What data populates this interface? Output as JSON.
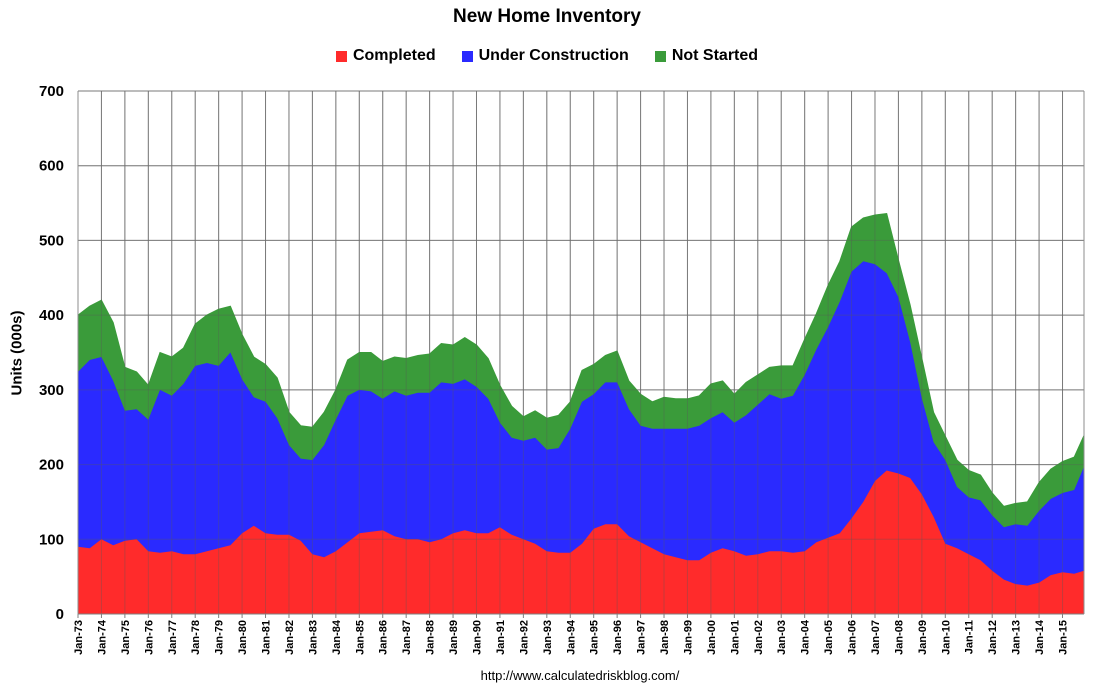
{
  "chart_data": {
    "type": "area",
    "stacked": true,
    "title": "New Home Inventory",
    "xlabel": "",
    "ylabel": "Units (000s)",
    "ylim": [
      0,
      700
    ],
    "yticks": [
      0,
      100,
      200,
      300,
      400,
      500,
      600,
      700
    ],
    "grid": true,
    "legend_position": "top",
    "x_start": "Jan-73",
    "x_end": "Dec-15",
    "x_ticks": [
      "Jan-73",
      "Jan-74",
      "Jan-75",
      "Jan-76",
      "Jan-77",
      "Jan-78",
      "Jan-79",
      "Jan-80",
      "Jan-81",
      "Jan-82",
      "Jan-83",
      "Jan-84",
      "Jan-85",
      "Jan-86",
      "Jan-87",
      "Jan-88",
      "Jan-89",
      "Jan-90",
      "Jan-91",
      "Jan-92",
      "Jan-93",
      "Jan-94",
      "Jan-95",
      "Jan-96",
      "Jan-97",
      "Jan-98",
      "Jan-99",
      "Jan-00",
      "Jan-01",
      "Jan-02",
      "Jan-03",
      "Jan-04",
      "Jan-05",
      "Jan-06",
      "Jan-07",
      "Jan-08",
      "Jan-09",
      "Jan-10",
      "Jan-11",
      "Jan-12",
      "Jan-13",
      "Jan-14",
      "Jan-15"
    ],
    "x": [
      "Jan-73",
      "Jul-73",
      "Jan-74",
      "Jul-74",
      "Jan-75",
      "Jul-75",
      "Jan-76",
      "Jul-76",
      "Jan-77",
      "Jul-77",
      "Jan-78",
      "Jul-78",
      "Jan-79",
      "Jul-79",
      "Jan-80",
      "Jul-80",
      "Jan-81",
      "Jul-81",
      "Jan-82",
      "Jul-82",
      "Jan-83",
      "Jul-83",
      "Jan-84",
      "Jul-84",
      "Jan-85",
      "Jul-85",
      "Jan-86",
      "Jul-86",
      "Jan-87",
      "Jul-87",
      "Jan-88",
      "Jul-88",
      "Jan-89",
      "Jul-89",
      "Jan-90",
      "Jul-90",
      "Jan-91",
      "Jul-91",
      "Jan-92",
      "Jul-92",
      "Jan-93",
      "Jul-93",
      "Jan-94",
      "Jul-94",
      "Jan-95",
      "Jul-95",
      "Jan-96",
      "Jul-96",
      "Jan-97",
      "Jul-97",
      "Jan-98",
      "Jul-98",
      "Jan-99",
      "Jul-99",
      "Jan-00",
      "Jul-00",
      "Jan-01",
      "Jul-01",
      "Jan-02",
      "Jul-02",
      "Jan-03",
      "Jul-03",
      "Jan-04",
      "Jul-04",
      "Jan-05",
      "Jul-05",
      "Jan-06",
      "Jul-06",
      "Jan-07",
      "Jul-07",
      "Jan-08",
      "Jul-08",
      "Jan-09",
      "Jul-09",
      "Jan-10",
      "Jul-10",
      "Jan-11",
      "Jul-11",
      "Jan-12",
      "Jul-12",
      "Jan-13",
      "Jul-13",
      "Jan-14",
      "Jul-14",
      "Jan-15",
      "Jul-15",
      "Dec-15"
    ],
    "series": [
      {
        "name": "Completed",
        "color": "#ff2b2b",
        "values": [
          90,
          88,
          100,
          92,
          98,
          100,
          84,
          82,
          84,
          80,
          80,
          84,
          88,
          92,
          108,
          118,
          108,
          106,
          106,
          98,
          80,
          76,
          84,
          96,
          108,
          110,
          112,
          104,
          100,
          100,
          96,
          100,
          108,
          112,
          108,
          108,
          116,
          106,
          100,
          94,
          84,
          82,
          82,
          94,
          114,
          120,
          120,
          104,
          96,
          88,
          80,
          76,
          72,
          72,
          82,
          88,
          84,
          78,
          80,
          84,
          84,
          82,
          84,
          96,
          102,
          108,
          128,
          150,
          178,
          192,
          188,
          182,
          160,
          130,
          94,
          88,
          80,
          72,
          58,
          46,
          40,
          38,
          42,
          52,
          56,
          54,
          58
        ]
      },
      {
        "name": "Under Construction",
        "color": "#2a2aff",
        "values": [
          234,
          252,
          244,
          220,
          174,
          174,
          176,
          218,
          208,
          228,
          252,
          252,
          244,
          258,
          206,
          172,
          176,
          156,
          120,
          110,
          126,
          150,
          176,
          196,
          192,
          188,
          176,
          194,
          192,
          196,
          200,
          210,
          200,
          202,
          196,
          180,
          140,
          130,
          132,
          142,
          136,
          140,
          166,
          190,
          180,
          190,
          190,
          170,
          156,
          160,
          168,
          172,
          176,
          180,
          180,
          182,
          172,
          188,
          200,
          210,
          204,
          210,
          236,
          258,
          282,
          310,
          330,
          322,
          290,
          264,
          236,
          182,
          128,
          100,
          112,
          82,
          76,
          80,
          74,
          70,
          80,
          80,
          96,
          102,
          106,
          112,
          139
        ]
      },
      {
        "name": "Not Started",
        "color": "#3a9b3a",
        "values": [
          76,
          72,
          76,
          78,
          58,
          50,
          46,
          50,
          52,
          48,
          56,
          64,
          76,
          62,
          60,
          54,
          50,
          54,
          44,
          44,
          44,
          44,
          40,
          48,
          50,
          52,
          50,
          46,
          50,
          50,
          52,
          52,
          52,
          56,
          56,
          54,
          50,
          42,
          32,
          36,
          42,
          44,
          36,
          42,
          40,
          36,
          42,
          38,
          42,
          36,
          42,
          40,
          40,
          40,
          46,
          42,
          38,
          44,
          40,
          36,
          44,
          40,
          48,
          48,
          56,
          54,
          60,
          58,
          66,
          80,
          50,
          50,
          54,
          40,
          32,
          36,
          36,
          34,
          30,
          28,
          28,
          32,
          38,
          40,
          42,
          44,
          42
        ]
      }
    ]
  },
  "source_text": "http://www.calculatedriskblog.com/"
}
